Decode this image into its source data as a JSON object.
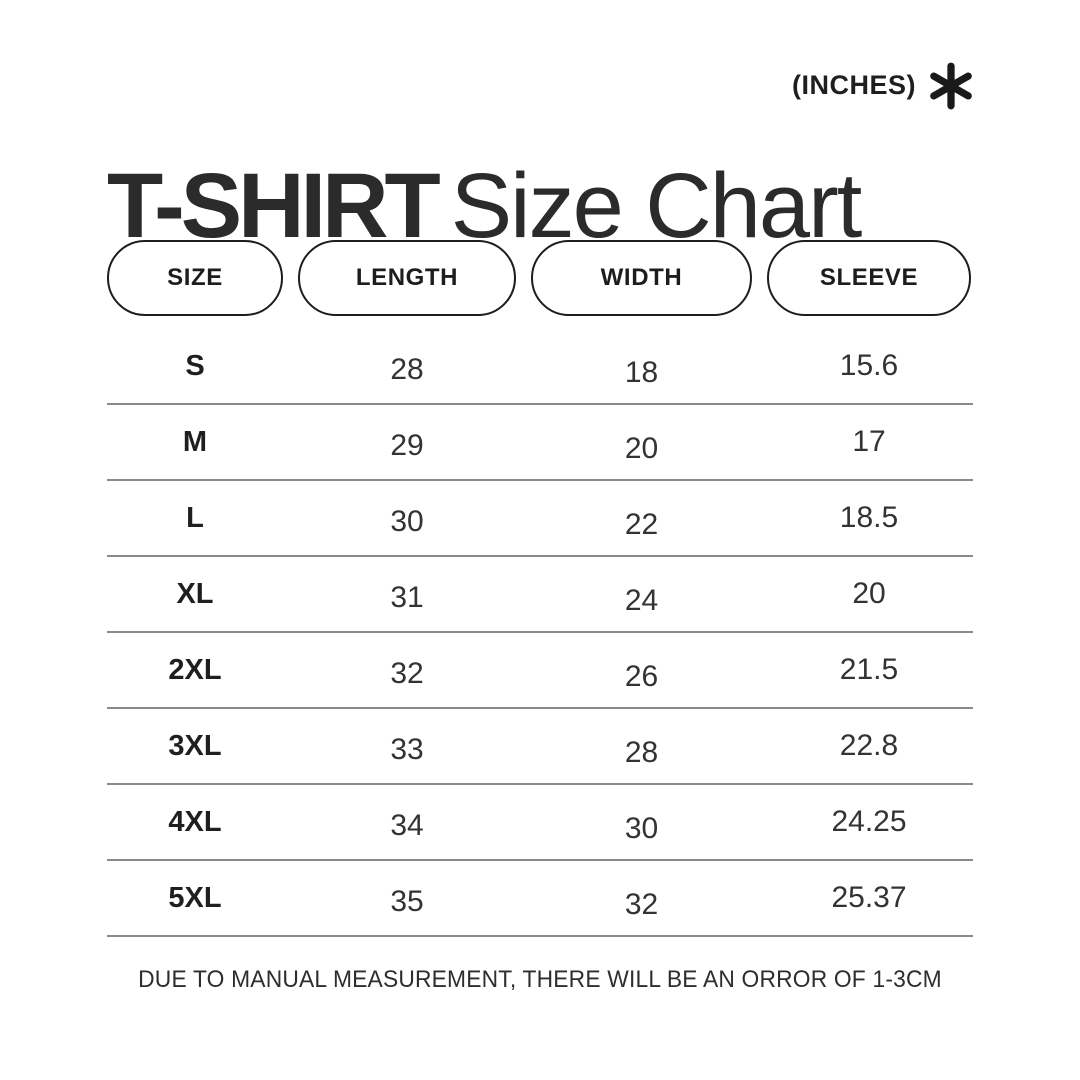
{
  "meta": {
    "units_label": "(INCHES)",
    "asterisk_icon": "six-spoke-asterisk"
  },
  "title": {
    "bold": "T-SHIRT",
    "regular": "Size Chart"
  },
  "table": {
    "columns": [
      "SIZE",
      "LENGTH",
      "WIDTH",
      "SLEEVE"
    ],
    "rows": [
      {
        "size": "S",
        "length": "28",
        "width": "18",
        "sleeve": "15.6"
      },
      {
        "size": "M",
        "length": "29",
        "width": "20",
        "sleeve": "17"
      },
      {
        "size": "L",
        "length": "30",
        "width": "22",
        "sleeve": "18.5"
      },
      {
        "size": "XL",
        "length": "31",
        "width": "24",
        "sleeve": "20"
      },
      {
        "size": "2XL",
        "length": "32",
        "width": "26",
        "sleeve": "21.5"
      },
      {
        "size": "3XL",
        "length": "33",
        "width": "28",
        "sleeve": "22.8"
      },
      {
        "size": "4XL",
        "length": "34",
        "width": "30",
        "sleeve": "24.25"
      },
      {
        "size": "5XL",
        "length": "35",
        "width": "32",
        "sleeve": "25.37"
      }
    ]
  },
  "footer": {
    "note": "DUE TO MANUAL MEASUREMENT, THERE WILL BE AN ORROR OF 1-3CM"
  },
  "colors": {
    "background": "#ffffff",
    "text_dark": "#1f1f1f",
    "text_value": "#333333",
    "divider": "#8a8a8a",
    "pill_border": "#1d1d1d"
  },
  "chart_data": {
    "type": "table",
    "title": "T-SHIRT Size Chart",
    "units": "inches",
    "columns": [
      "SIZE",
      "LENGTH",
      "WIDTH",
      "SLEEVE"
    ],
    "rows": [
      [
        "S",
        28,
        18,
        15.6
      ],
      [
        "M",
        29,
        20,
        17
      ],
      [
        "L",
        30,
        22,
        18.5
      ],
      [
        "XL",
        31,
        24,
        20
      ],
      [
        "2XL",
        32,
        26,
        21.5
      ],
      [
        "3XL",
        33,
        28,
        22.8
      ],
      [
        "4XL",
        34,
        30,
        24.25
      ],
      [
        "5XL",
        35,
        32,
        25.37
      ]
    ],
    "note": "DUE TO MANUAL MEASUREMENT, THERE WILL BE AN ORROR OF 1-3CM"
  }
}
